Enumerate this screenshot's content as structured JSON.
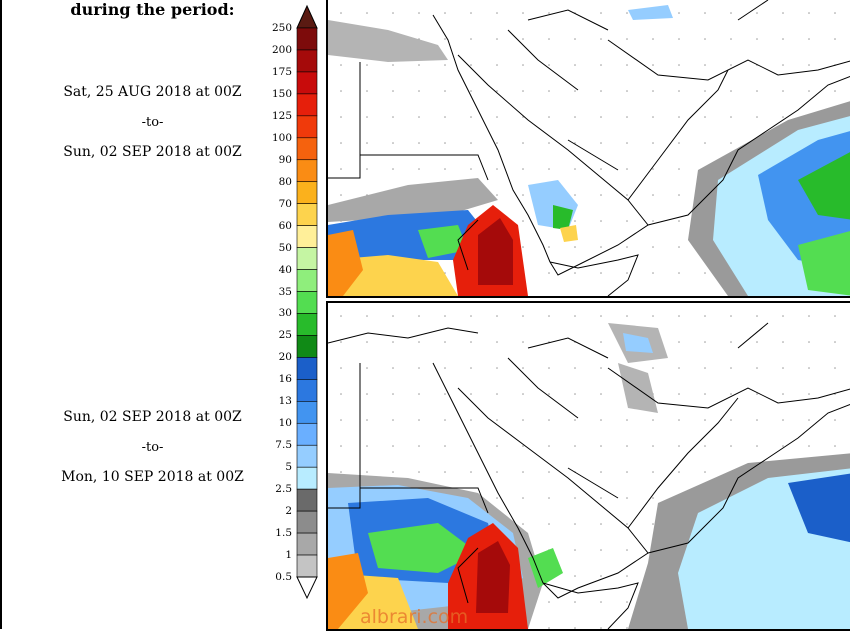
{
  "heading": "during the period:",
  "period1": {
    "start": "Sat, 25 AUG 2018 at 00Z",
    "to": "-to-",
    "end": "Sun, 02 SEP 2018 at 00Z"
  },
  "period2": {
    "start": "Sun, 02 SEP 2018 at 00Z",
    "to": "-to-",
    "end": "Mon, 10 SEP 2018 at 00Z"
  },
  "legend": {
    "ticks": [
      "250",
      "200",
      "175",
      "150",
      "125",
      "100",
      "90",
      "80",
      "70",
      "60",
      "50",
      "40",
      "35",
      "30",
      "25",
      "20",
      "16",
      "13",
      "10",
      "7.5",
      "5",
      "2.5",
      "2",
      "1.5",
      "1",
      "0.5"
    ],
    "colors": [
      "#5a1a12",
      "#7d0b0b",
      "#a50a0a",
      "#c80b0b",
      "#e61f0b",
      "#f03a0b",
      "#f5620e",
      "#fa8c14",
      "#fbb11c",
      "#fdd34d",
      "#ffef99",
      "#c5f5a3",
      "#8fee7c",
      "#53dd51",
      "#28bb2b",
      "#108a16",
      "#1b5fc9",
      "#2c78e0",
      "#4294f0",
      "#6aafff",
      "#95cdff",
      "#b8ecff",
      "#6a6a6a",
      "#8c8c8c",
      "#a8a8a8",
      "#c4c4c4",
      "#dddddd"
    ]
  },
  "watermark": "albrari.com"
}
